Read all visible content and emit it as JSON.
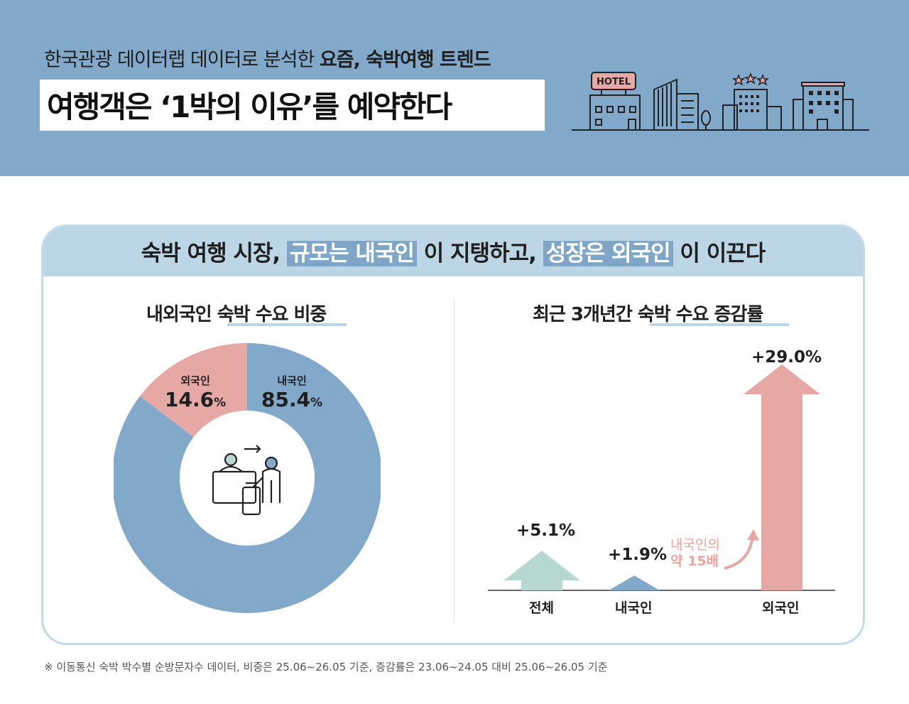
{
  "header": {
    "subtitle_plain": "한국관광 데이터랩 데이터로 분석한 ",
    "subtitle_bold": "요즘, 숙박여행 트렌드",
    "title": "여행객은 ‘1박의 이유’를 예약한다",
    "hotel_sign": "HOTEL"
  },
  "panel": {
    "headline_1": "숙박 여행 시장, ",
    "headline_hl1": "규모는 내국인",
    "headline_2": " 이 지탱하고, ",
    "headline_hl2": "성장은 외국인",
    "headline_3": " 이 이끈다"
  },
  "pie": {
    "title": "내외국인 숙박 수요 비중",
    "foreign_name": "외국인",
    "foreign_value": "14.6",
    "domestic_name": "내국인",
    "domestic_value": "85.4",
    "unit": "%"
  },
  "bars": {
    "title": "최근 3개년간 숙박 수요 증감률",
    "note_line1": "내국인의",
    "note_line2": "약 15배"
  },
  "chart_data": [
    {
      "type": "pie",
      "title": "내외국인 숙박 수요 비중",
      "categories": [
        "내국인",
        "외국인"
      ],
      "values": [
        85.4,
        14.6
      ],
      "unit": "%",
      "colors": [
        "#82a9c9",
        "#e5a8a4"
      ]
    },
    {
      "type": "bar",
      "title": "최근 3개년간 숙박 수요 증감률",
      "categories": [
        "전체",
        "내국인",
        "외국인"
      ],
      "values": [
        5.1,
        1.9,
        29.0
      ],
      "labels": [
        "+5.1%",
        "+1.9%",
        "+29.0%"
      ],
      "unit": "%",
      "colors": [
        "#b7d8d0",
        "#82a9c9",
        "#e5a8a4"
      ],
      "annotation": "내국인의 약 15배"
    }
  ],
  "footnote": "※ 이동통신 숙박 박수별 순방문자수 데이터, 비중은 25.06~26.05 기준, 증감률은 23.06~24.05 대비 25.06~26.05 기준",
  "colors": {
    "header_bg": "#82a9c9",
    "panel_head": "#bcd6e6",
    "domestic": "#82a9c9",
    "foreign": "#e5a8a4",
    "total": "#b7d8d0"
  }
}
